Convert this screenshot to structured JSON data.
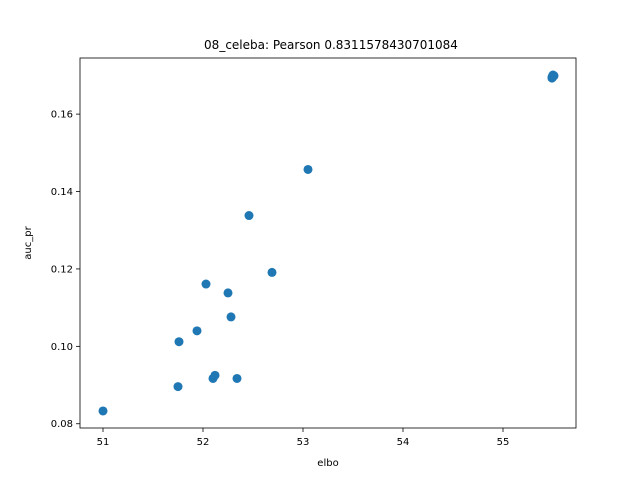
{
  "chart_data": {
    "type": "scatter",
    "title": "08_celeba: Pearson 0.8311578430701084",
    "xlabel": "elbo",
    "ylabel": "auc_pr",
    "xlim": [
      50.77,
      55.73
    ],
    "ylim": [
      0.0789,
      0.1745
    ],
    "xticks": [
      51,
      52,
      53,
      54,
      55
    ],
    "xtick_labels": [
      "51",
      "52",
      "53",
      "54",
      "55"
    ],
    "yticks": [
      0.08,
      0.1,
      0.12,
      0.14,
      0.16
    ],
    "ytick_labels": [
      "0.08",
      "0.10",
      "0.12",
      "0.14",
      "0.16"
    ],
    "grid": false,
    "marker_color": "#1f77b4",
    "points": [
      {
        "x": 51.0,
        "y": 0.0833
      },
      {
        "x": 51.75,
        "y": 0.0896
      },
      {
        "x": 51.76,
        "y": 0.1012
      },
      {
        "x": 51.94,
        "y": 0.104
      },
      {
        "x": 52.03,
        "y": 0.1161
      },
      {
        "x": 52.1,
        "y": 0.0917
      },
      {
        "x": 52.12,
        "y": 0.0925
      },
      {
        "x": 52.25,
        "y": 0.1138
      },
      {
        "x": 52.28,
        "y": 0.1076
      },
      {
        "x": 52.34,
        "y": 0.0917
      },
      {
        "x": 52.46,
        "y": 0.1338
      },
      {
        "x": 52.69,
        "y": 0.1191
      },
      {
        "x": 53.05,
        "y": 0.1457
      },
      {
        "x": 55.49,
        "y": 0.1693
      },
      {
        "x": 55.5,
        "y": 0.1697
      },
      {
        "x": 55.51,
        "y": 0.1699
      },
      {
        "x": 55.5,
        "y": 0.1701
      },
      {
        "x": 55.49,
        "y": 0.1696
      }
    ]
  }
}
